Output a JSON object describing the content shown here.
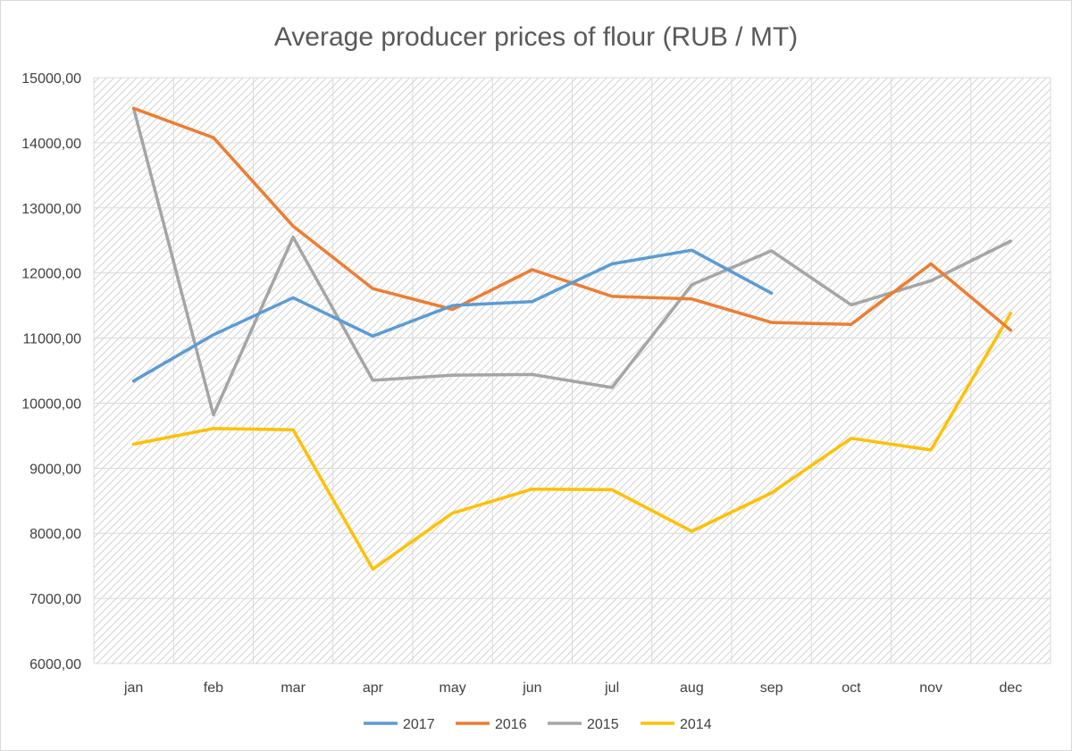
{
  "chart_data": {
    "type": "line",
    "title": "Average producer prices of flour (RUB / MT)",
    "xlabel": "",
    "ylabel": "",
    "categories": [
      "jan",
      "feb",
      "mar",
      "apr",
      "may",
      "jun",
      "jul",
      "aug",
      "sep",
      "oct",
      "nov",
      "dec"
    ],
    "ylim": [
      6000,
      15000
    ],
    "yticks": [
      6000,
      7000,
      8000,
      9000,
      10000,
      11000,
      12000,
      13000,
      14000,
      15000
    ],
    "ytick_labels": [
      "6000,00",
      "7000,00",
      "8000,00",
      "9000,00",
      "10000,00",
      "11000,00",
      "12000,00",
      "13000,00",
      "14000,00",
      "15000,00"
    ],
    "grid": true,
    "legend_position": "bottom",
    "series": [
      {
        "name": "2017",
        "color": "#5B9BD5",
        "values": [
          10340,
          11050,
          11620,
          11030,
          11500,
          11560,
          12140,
          12350,
          11690,
          null,
          null,
          null
        ]
      },
      {
        "name": "2016",
        "color": "#ED7D31",
        "values": [
          14530,
          14080,
          12720,
          11760,
          11440,
          12050,
          11640,
          11600,
          11240,
          11210,
          12140,
          11120
        ]
      },
      {
        "name": "2015",
        "color": "#A5A5A5",
        "values": [
          14530,
          9820,
          12550,
          10350,
          10430,
          10440,
          10240,
          11820,
          12340,
          11510,
          11880,
          12490
        ]
      },
      {
        "name": "2014",
        "color": "#FFC000",
        "values": [
          9370,
          9610,
          9590,
          7450,
          8310,
          8680,
          8670,
          8030,
          8620,
          9460,
          9280,
          11380
        ]
      }
    ]
  }
}
